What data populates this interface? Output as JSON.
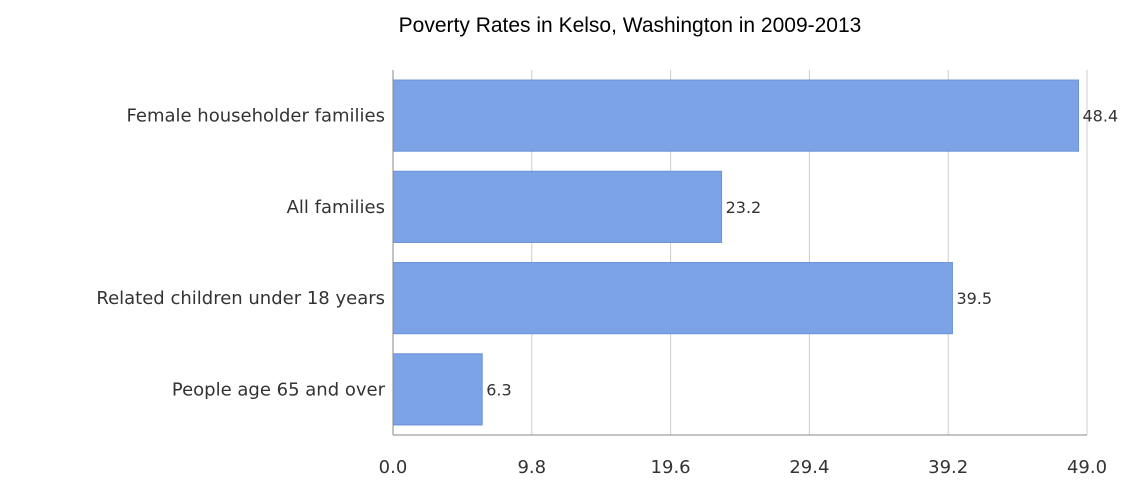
{
  "chart_data": {
    "type": "bar",
    "orientation": "horizontal",
    "title": "Poverty Rates in Kelso, Washington in 2009-2013",
    "categories": [
      "Female householder families",
      "All families",
      "Related children under 18 years",
      "People age 65 and over"
    ],
    "values": [
      48.4,
      23.2,
      39.5,
      6.3
    ],
    "data_labels": [
      "48.4",
      "23.2",
      "39.5",
      "6.3"
    ],
    "xlim": [
      0,
      49.0
    ],
    "x_ticks": [
      0.0,
      9.8,
      19.6,
      29.4,
      39.2,
      49.0
    ],
    "x_tick_labels": [
      "0.0",
      "9.8",
      "19.6",
      "29.4",
      "39.2",
      "49.0"
    ],
    "xlabel": "",
    "ylabel": "",
    "grid": true,
    "legend": "none",
    "colors": {
      "bar": "#7ba3e6",
      "bar_edge": "#6a92d6",
      "grid": "#cccccc",
      "axis": "#888888",
      "plot_background": "#ffffff"
    }
  }
}
